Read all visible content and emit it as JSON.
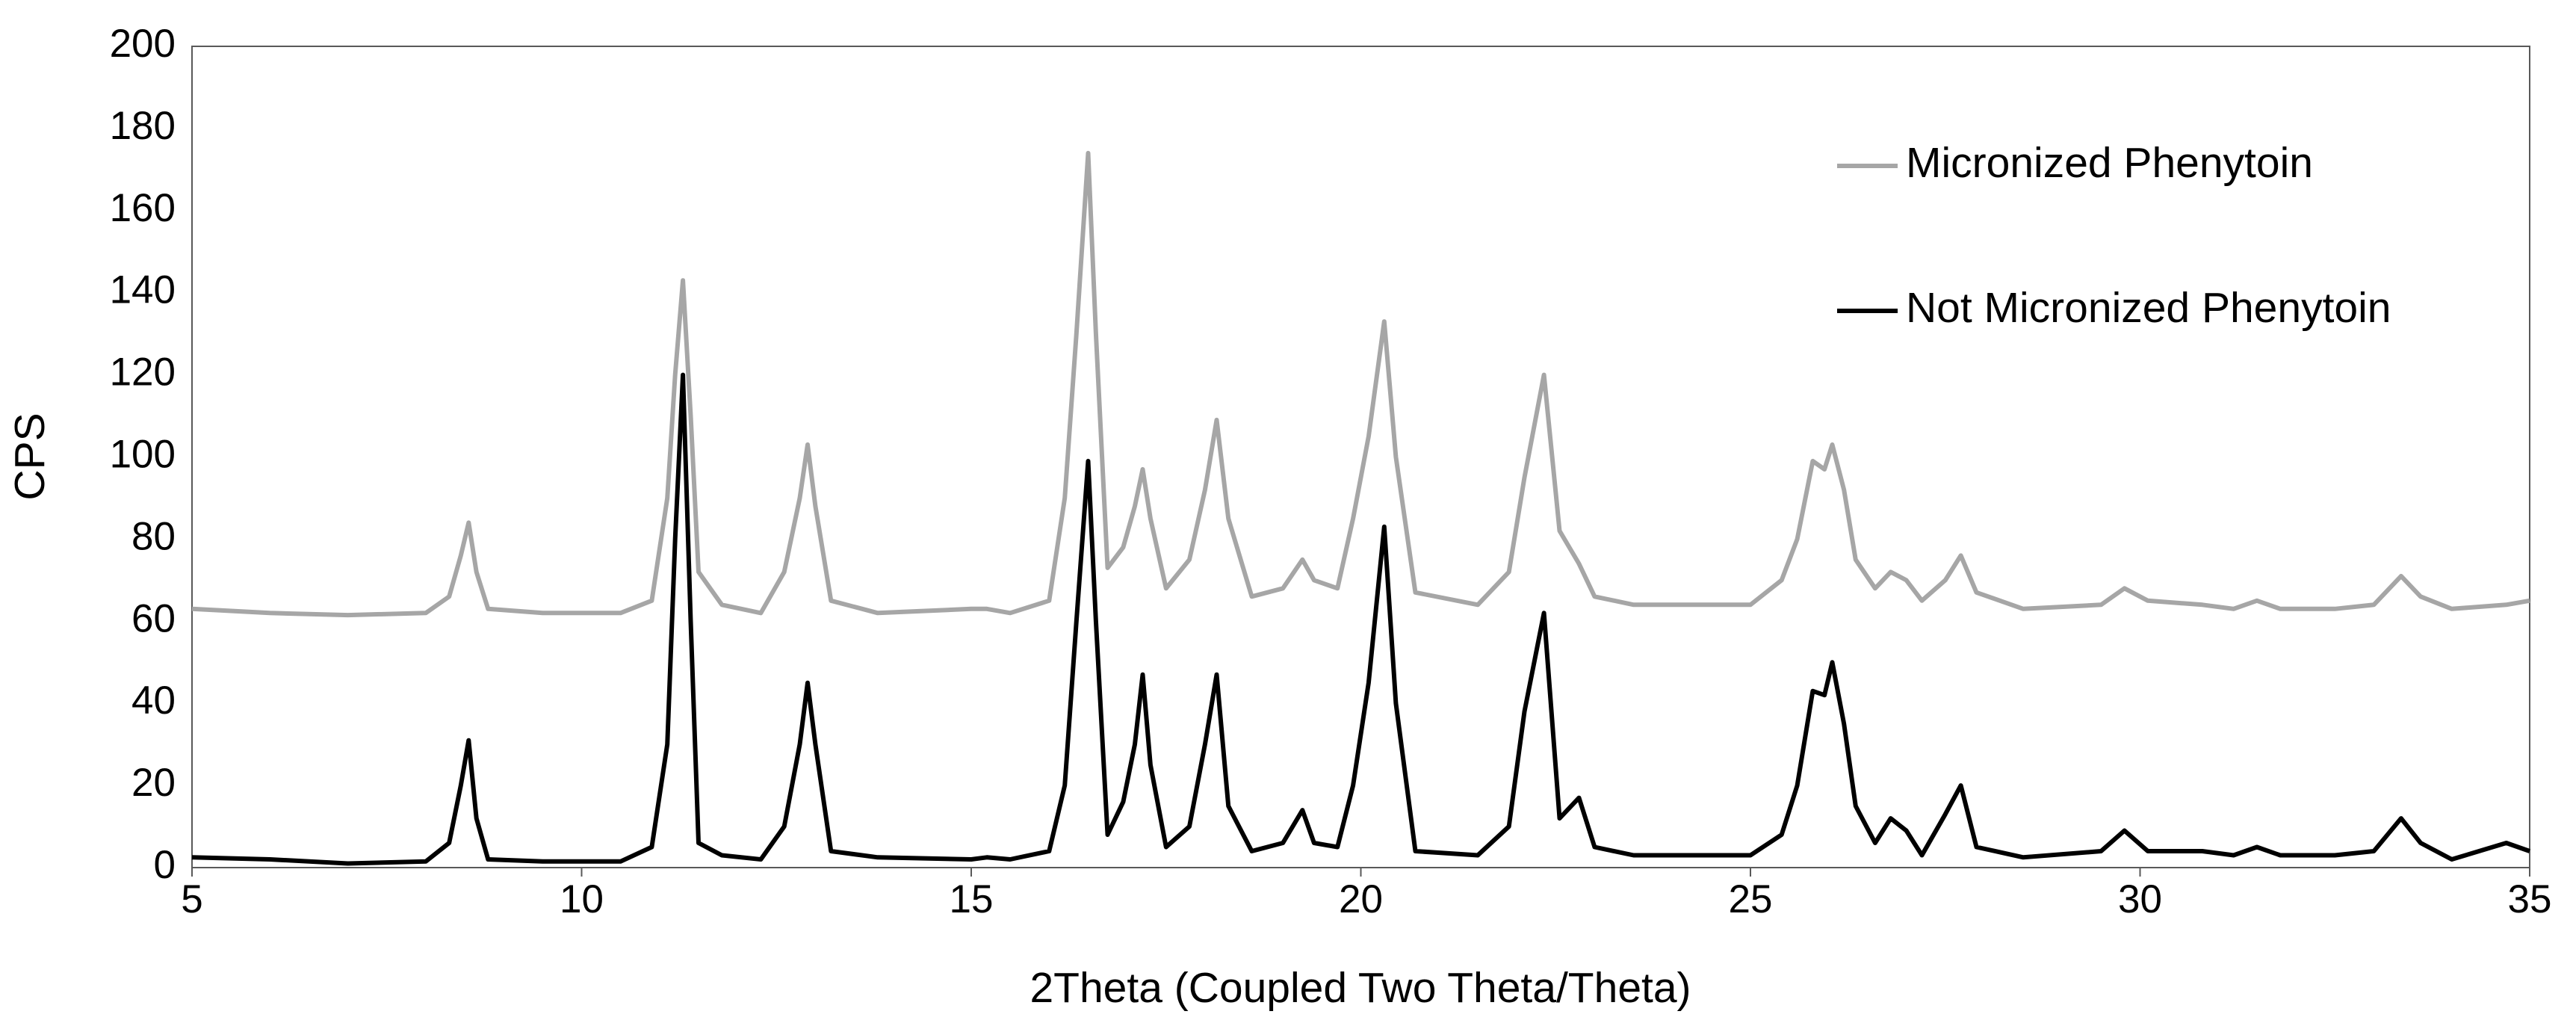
{
  "chart_data": {
    "type": "line",
    "x_label": "2Theta (Coupled Two Theta/Theta)",
    "y_label": "CPS",
    "xlim": [
      5,
      35
    ],
    "xticks": [
      5,
      10,
      15,
      20,
      25,
      30,
      35
    ],
    "ylim": [
      0,
      200
    ],
    "yticks": [
      0,
      20,
      40,
      60,
      80,
      100,
      120,
      140,
      160,
      180,
      200
    ],
    "grid": false,
    "legend": "top-right",
    "x": [
      5,
      6,
      7,
      8,
      8.3,
      8.45,
      8.55,
      8.65,
      8.8,
      9.5,
      10.5,
      10.9,
      11.1,
      11.2,
      11.3,
      11.4,
      11.5,
      11.8,
      12.3,
      12.6,
      12.8,
      12.9,
      13.0,
      13.2,
      13.8,
      15,
      15.2,
      15.5,
      16.0,
      16.2,
      16.35,
      16.5,
      16.6,
      16.75,
      16.95,
      17.1,
      17.2,
      17.3,
      17.5,
      17.8,
      18.0,
      18.15,
      18.3,
      18.6,
      19.0,
      19.25,
      19.4,
      19.7,
      19.9,
      20.1,
      20.3,
      20.45,
      20.7,
      21.5,
      21.9,
      22.1,
      22.35,
      22.55,
      22.8,
      23.0,
      23.5,
      25.0,
      25.4,
      25.6,
      25.8,
      25.95,
      26.05,
      26.2,
      26.35,
      26.6,
      26.8,
      27.0,
      27.2,
      27.5,
      27.7,
      27.9,
      28.5,
      29.5,
      29.8,
      30.1,
      30.8,
      31.2,
      31.5,
      31.8,
      32.5,
      33.0,
      33.35,
      33.6,
      34.0,
      34.7,
      35
    ],
    "series": [
      {
        "name": "Micronized Phenytoin",
        "color": "#a6a6a6",
        "values": [
          63,
          62,
          61.5,
          62,
          66,
          76,
          84,
          72,
          63,
          62,
          62,
          65,
          90,
          120,
          143,
          110,
          72,
          64,
          62,
          72,
          90,
          103,
          88,
          65,
          62,
          63,
          63,
          62,
          65,
          90,
          130,
          174,
          130,
          73,
          78,
          88,
          97,
          85,
          68,
          75,
          92,
          109,
          85,
          66,
          68,
          75,
          70,
          68,
          85,
          105,
          133,
          100,
          67,
          64,
          72,
          95,
          120,
          82,
          74,
          66,
          64,
          64,
          70,
          80,
          99,
          97,
          103,
          92,
          75,
          68,
          72,
          70,
          65,
          70,
          76,
          67,
          63,
          64,
          68,
          65,
          64,
          63,
          65,
          63,
          63,
          64,
          71,
          66,
          63,
          64,
          65
        ]
      },
      {
        "name": "Not Micronized Phenytoin",
        "color": "#000000",
        "values": [
          2.5,
          2,
          1,
          1.5,
          6,
          20,
          31,
          12,
          2,
          1.5,
          1.5,
          5,
          30,
          80,
          120,
          60,
          6,
          3,
          2,
          10,
          30,
          45,
          30,
          4,
          2.5,
          2,
          2.5,
          2,
          4,
          20,
          60,
          99,
          60,
          8,
          16,
          30,
          47,
          25,
          5,
          10,
          30,
          47,
          15,
          4,
          6,
          14,
          6,
          5,
          20,
          45,
          83,
          40,
          4,
          3,
          10,
          38,
          62,
          12,
          17,
          5,
          3,
          3,
          8,
          20,
          43,
          42,
          50,
          35,
          15,
          6,
          12,
          9,
          3,
          13,
          20,
          5,
          2.5,
          4,
          9,
          4,
          4,
          3,
          5,
          3,
          3,
          4,
          12,
          6,
          2,
          6,
          4
        ]
      }
    ]
  }
}
